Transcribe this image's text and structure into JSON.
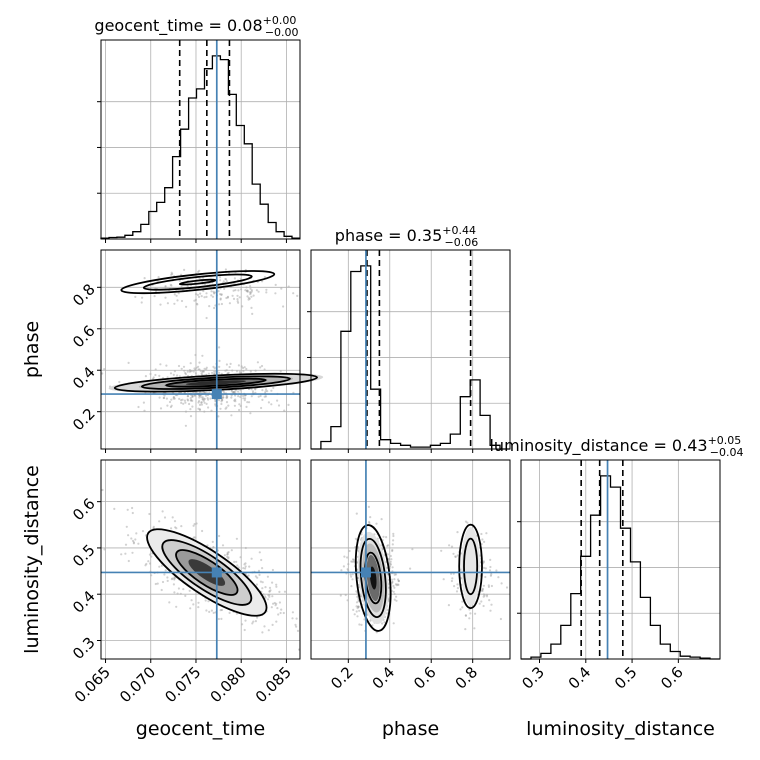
{
  "chart_data": {
    "type": "corner",
    "parameters": [
      "geocent_time",
      "phase",
      "luminosity_distance"
    ],
    "axis_labels": {
      "geocent_time": "geocent_time",
      "phase": "phase",
      "luminosity_distance": "luminosity_distance"
    },
    "titles": [
      {
        "param": "geocent_time",
        "text": "geocent_time = 0.08",
        "plus": "+0.00",
        "minus": "−0.00"
      },
      {
        "param": "phase",
        "text": "phase = 0.35",
        "plus": "+0.44",
        "minus": "−0.06"
      },
      {
        "param": "luminosity_distance",
        "text": "luminosity_distance = 0.43",
        "plus": "+0.05",
        "minus": "−0.04"
      }
    ],
    "ranges": {
      "geocent_time": [
        0.0645,
        0.0865
      ],
      "phase": [
        0.02,
        0.98
      ],
      "luminosity_distance": [
        0.26,
        0.69
      ]
    },
    "ticks": {
      "geocent_time": {
        "values": [
          0.065,
          0.07,
          0.075,
          0.08,
          0.085
        ],
        "labels": [
          "0.065",
          "0.070",
          "0.075",
          "0.080",
          "0.085"
        ]
      },
      "phase": {
        "values": [
          0.2,
          0.4,
          0.6,
          0.8
        ],
        "labels": [
          "0.2",
          "0.4",
          "0.6",
          "0.8"
        ]
      },
      "luminosity_distance": {
        "values": [
          0.3,
          0.4,
          0.5,
          0.6
        ],
        "labels": [
          "0.3",
          "0.4",
          "0.5",
          "0.6"
        ]
      }
    },
    "truth": {
      "geocent_time": 0.0773,
      "phase": 0.285,
      "luminosity_distance": 0.447
    },
    "quantiles": {
      "geocent_time": [
        0.0732,
        0.0762,
        0.0787
      ],
      "phase": [
        0.29,
        0.35,
        0.79
      ],
      "luminosity_distance": [
        0.39,
        0.43,
        0.48
      ]
    },
    "histograms": {
      "geocent_time": [
        0.005,
        0.008,
        0.01,
        0.02,
        0.04,
        0.08,
        0.15,
        0.2,
        0.28,
        0.45,
        0.6,
        0.77,
        0.82,
        0.93,
        1.0,
        0.98,
        0.79,
        0.62,
        0.52,
        0.3,
        0.19,
        0.09,
        0.04,
        0.015,
        0.005
      ],
      "phase": [
        0.0,
        0.04,
        0.12,
        0.63,
        0.95,
        0.98,
        0.32,
        0.05,
        0.03,
        0.02,
        0.01,
        0.01,
        0.02,
        0.03,
        0.08,
        0.28,
        0.37,
        0.18,
        0.02,
        0.0
      ],
      "luminosity_distance": [
        0.0,
        0.01,
        0.03,
        0.08,
        0.18,
        0.35,
        0.55,
        0.77,
        0.98,
        0.92,
        0.7,
        0.52,
        0.33,
        0.18,
        0.08,
        0.04,
        0.015,
        0.01,
        0.005,
        0.0
      ]
    },
    "grid": true
  }
}
